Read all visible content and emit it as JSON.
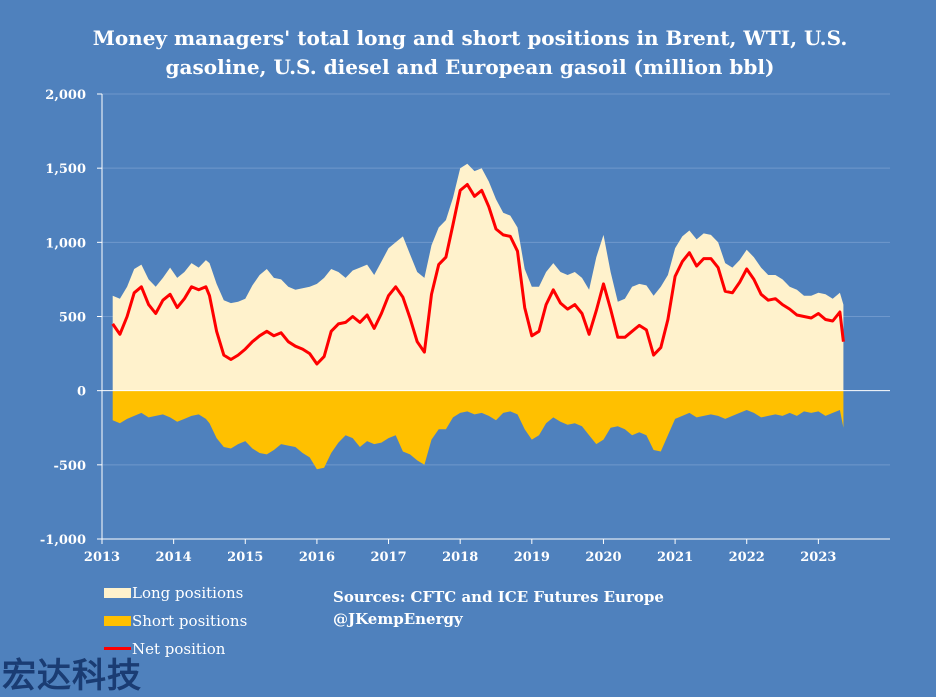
{
  "title": {
    "line1": "Money managers' total long and short positions in Brent, WTI, U.S.",
    "line2": "gasoline, U.S. diesel and European gasoil  (million bbl)"
  },
  "chart_data": {
    "type": "area",
    "title": "Money managers' total long and short positions in Brent, WTI, U.S. gasoline, U.S. diesel and European gasoil  (million bbl)",
    "xlim": [
      2013,
      2024
    ],
    "ylim": [
      -1000,
      2000
    ],
    "y_ticks": [
      -1000,
      -500,
      0,
      500,
      1000,
      1500,
      2000
    ],
    "y_tick_labels": [
      "-1,000",
      "-500",
      "0",
      "500",
      "1,000",
      "1,500",
      "2,000"
    ],
    "x_ticks": [
      2013,
      2014,
      2015,
      2016,
      2017,
      2018,
      2019,
      2020,
      2021,
      2022,
      2023
    ],
    "x_tick_labels": [
      "2013",
      "2014",
      "2015",
      "2016",
      "2017",
      "2018",
      "2019",
      "2020",
      "2021",
      "2022",
      "2023"
    ],
    "grid": "horizontal",
    "legend_position": "bottom-left",
    "x": [
      2013.15,
      2013.25,
      2013.35,
      2013.45,
      2013.55,
      2013.65,
      2013.75,
      2013.85,
      2013.95,
      2014.05,
      2014.15,
      2014.25,
      2014.35,
      2014.45,
      2014.5,
      2014.6,
      2014.7,
      2014.8,
      2014.9,
      2015.0,
      2015.1,
      2015.2,
      2015.3,
      2015.4,
      2015.5,
      2015.6,
      2015.7,
      2015.8,
      2015.9,
      2016.0,
      2016.1,
      2016.2,
      2016.3,
      2016.4,
      2016.5,
      2016.6,
      2016.7,
      2016.8,
      2016.9,
      2017.0,
      2017.1,
      2017.2,
      2017.3,
      2017.4,
      2017.5,
      2017.6,
      2017.7,
      2017.8,
      2017.9,
      2018.0,
      2018.1,
      2018.2,
      2018.3,
      2018.4,
      2018.5,
      2018.6,
      2018.7,
      2018.8,
      2018.9,
      2019.0,
      2019.1,
      2019.2,
      2019.3,
      2019.4,
      2019.5,
      2019.6,
      2019.7,
      2019.8,
      2019.9,
      2020.0,
      2020.1,
      2020.2,
      2020.3,
      2020.4,
      2020.5,
      2020.6,
      2020.7,
      2020.8,
      2020.9,
      2021.0,
      2021.1,
      2021.2,
      2021.3,
      2021.4,
      2021.5,
      2021.6,
      2021.7,
      2021.8,
      2021.9,
      2022.0,
      2022.1,
      2022.2,
      2022.3,
      2022.4,
      2022.5,
      2022.6,
      2022.7,
      2022.8,
      2022.9,
      2023.0,
      2023.1,
      2023.2,
      2023.3,
      2023.35
    ],
    "series": [
      {
        "name": "Long positions",
        "color": "#fff2cc",
        "values": [
          640,
          620,
          700,
          820,
          850,
          750,
          700,
          760,
          830,
          760,
          800,
          860,
          830,
          880,
          860,
          720,
          610,
          590,
          600,
          620,
          710,
          780,
          820,
          760,
          750,
          700,
          680,
          690,
          700,
          720,
          760,
          820,
          800,
          760,
          810,
          830,
          850,
          780,
          870,
          960,
          1000,
          1040,
          920,
          800,
          760,
          980,
          1100,
          1150,
          1300,
          1500,
          1530,
          1480,
          1500,
          1410,
          1290,
          1200,
          1180,
          1100,
          820,
          700,
          700,
          800,
          860,
          800,
          780,
          800,
          760,
          680,
          900,
          1050,
          800,
          600,
          620,
          700,
          720,
          710,
          640,
          700,
          780,
          960,
          1040,
          1080,
          1020,
          1060,
          1050,
          1000,
          860,
          830,
          880,
          950,
          900,
          830,
          780,
          780,
          750,
          700,
          680,
          640,
          640,
          660,
          650,
          620,
          660,
          580
        ]
      },
      {
        "name": "Short positions",
        "color": "#ffc000",
        "values": [
          -200,
          -220,
          -190,
          -170,
          -150,
          -180,
          -170,
          -160,
          -180,
          -210,
          -190,
          -170,
          -160,
          -190,
          -220,
          -320,
          -380,
          -390,
          -360,
          -340,
          -390,
          -420,
          -430,
          -400,
          -360,
          -370,
          -380,
          -420,
          -450,
          -530,
          -520,
          -420,
          -350,
          -300,
          -320,
          -380,
          -340,
          -360,
          -350,
          -320,
          -300,
          -410,
          -430,
          -470,
          -500,
          -330,
          -260,
          -260,
          -180,
          -150,
          -140,
          -160,
          -150,
          -170,
          -200,
          -150,
          -140,
          -160,
          -260,
          -330,
          -300,
          -220,
          -180,
          -210,
          -230,
          -220,
          -240,
          -300,
          -360,
          -330,
          -250,
          -240,
          -260,
          -300,
          -280,
          -300,
          -400,
          -410,
          -300,
          -190,
          -170,
          -150,
          -180,
          -170,
          -160,
          -170,
          -190,
          -170,
          -150,
          -130,
          -150,
          -180,
          -170,
          -160,
          -170,
          -150,
          -170,
          -140,
          -150,
          -140,
          -170,
          -150,
          -130,
          -250
        ]
      },
      {
        "name": "Net position",
        "color": "#ff0000",
        "values": [
          450,
          380,
          500,
          660,
          700,
          580,
          520,
          610,
          650,
          560,
          620,
          700,
          680,
          700,
          640,
          400,
          240,
          210,
          240,
          280,
          330,
          370,
          400,
          370,
          390,
          330,
          300,
          280,
          250,
          180,
          230,
          400,
          450,
          460,
          500,
          460,
          510,
          420,
          520,
          640,
          700,
          630,
          490,
          330,
          260,
          650,
          850,
          900,
          1120,
          1350,
          1390,
          1310,
          1350,
          1240,
          1090,
          1050,
          1040,
          940,
          560,
          370,
          400,
          580,
          680,
          590,
          550,
          580,
          520,
          380,
          540,
          720,
          550,
          360,
          360,
          400,
          440,
          410,
          240,
          290,
          480,
          770,
          870,
          930,
          840,
          890,
          890,
          830,
          670,
          660,
          730,
          820,
          750,
          650,
          610,
          620,
          580,
          550,
          510,
          500,
          490,
          520,
          480,
          470,
          530,
          330
        ]
      }
    ]
  },
  "legend": {
    "long": "Long positions",
    "short": "Short positions",
    "net": "Net position"
  },
  "sources": {
    "line1": "Sources: CFTC and ICE Futures Europe",
    "line2": "@JKempEnergy"
  },
  "watermark": "宏达科技",
  "colors": {
    "background": "#4f81bd",
    "long": "#fff2cc",
    "short": "#ffc000",
    "net": "#ff0000",
    "grid": "#6f98cc",
    "axis": "#ffffff"
  }
}
